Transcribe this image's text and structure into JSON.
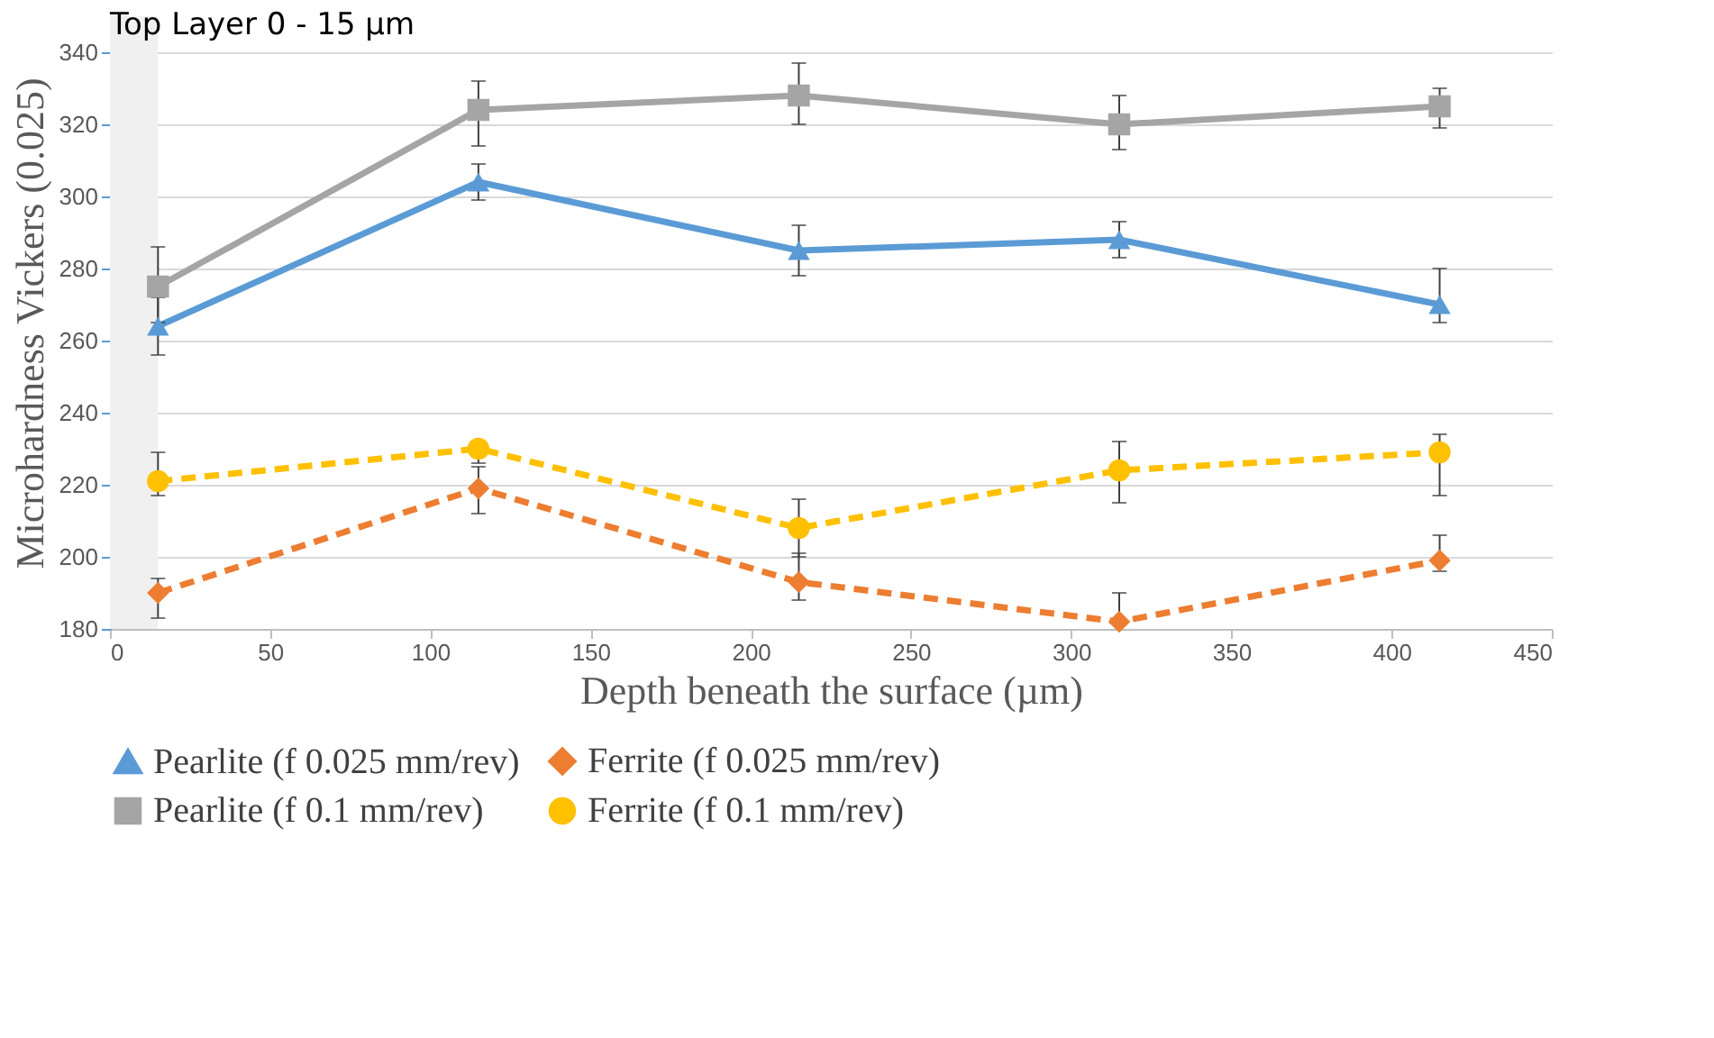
{
  "chart_data": {
    "type": "line",
    "xlabel": "Depth beneath the surface (µm)",
    "ylabel": "Microhardness Vickers  (0.025)",
    "x": [
      15,
      115,
      215,
      315,
      415
    ],
    "series": [
      {
        "name": "Pearlite (f 0.025 mm/rev)",
        "color": "#5b9bd5",
        "marker": "triangle",
        "line_style": "solid",
        "values": [
          264,
          304,
          285,
          288,
          270
        ],
        "errors": [
          [
            256,
            272
          ],
          [
            299,
            309
          ],
          [
            278,
            292
          ],
          [
            283,
            293
          ],
          [
            265,
            280
          ]
        ]
      },
      {
        "name": "Ferrite (f 0.025 mm/rev)",
        "color": "#ed7d31",
        "marker": "diamond",
        "line_style": "dashed",
        "values": [
          190,
          219,
          193,
          182,
          199
        ],
        "errors": [
          [
            183,
            194
          ],
          [
            212,
            225
          ],
          [
            188,
            201
          ],
          [
            182,
            190
          ],
          [
            196,
            206
          ]
        ]
      },
      {
        "name": "Pearlite (f 0.1 mm/rev)",
        "color": "#a5a5a5",
        "marker": "square",
        "line_style": "solid",
        "values": [
          275,
          324,
          328,
          320,
          325
        ],
        "errors": [
          [
            265,
            286
          ],
          [
            314,
            332
          ],
          [
            320,
            337
          ],
          [
            313,
            328
          ],
          [
            319,
            330
          ]
        ]
      },
      {
        "name": "Ferrite (f 0.1 mm/rev)",
        "color": "#ffc000",
        "marker": "circle",
        "line_style": "dashed",
        "values": [
          221,
          230,
          208,
          224,
          229
        ],
        "errors": [
          [
            217,
            229
          ],
          [
            226,
            232
          ],
          [
            200,
            216
          ],
          [
            215,
            232
          ],
          [
            217,
            234
          ]
        ]
      }
    ],
    "xlim": [
      0,
      450
    ],
    "xticks": [
      0,
      50,
      100,
      150,
      200,
      250,
      300,
      350,
      400,
      450
    ],
    "ylim": [
      180,
      350
    ],
    "yticks": [
      180,
      200,
      220,
      240,
      260,
      280,
      300,
      320,
      340
    ],
    "bands": [
      {
        "axis": "x",
        "from": 0,
        "to": 15,
        "label": "Top Layer 0 - 15 µm",
        "color": "#f0f0f0"
      }
    ],
    "grid": "y",
    "legend": "bottom"
  }
}
